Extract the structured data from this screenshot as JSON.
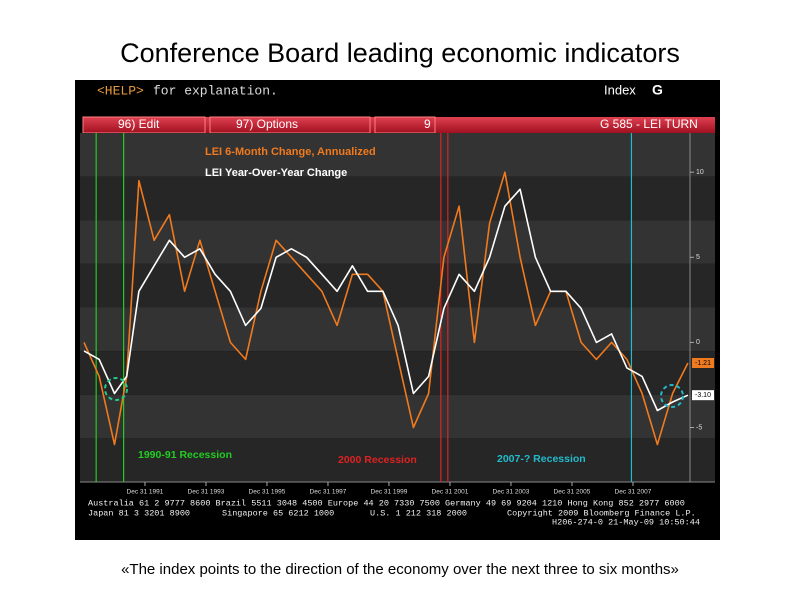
{
  "title": "Conference Board leading economic indicators",
  "caption": "«The index points to the direction of the economy over the next three to six months»",
  "header": {
    "help": "<HELP>",
    "help_text": "for explanation.",
    "index": "Index",
    "key": "G"
  },
  "menu": [
    "96) Edit",
    "97) Options",
    "9",
    "G 585 - LEI TURN"
  ],
  "footer": [
    "Australia 61 2 9777 8600 Brazil 5511 3048 4500 Europe 44 20 7330 7500 Germany 49 69 9204 1210 Hong Kong 852 2977 6000",
    "Japan 81 3 3201 8900",
    "Singapore 65 6212 1000",
    "U.S. 1 212 318 2000",
    "Copyright 2009 Bloomberg Finance L.P.",
    "H206-274-0 21-May-09 10:50:44"
  ],
  "chart_data": {
    "type": "line",
    "x": [
      1990.0,
      1990.5,
      1991.0,
      1991.4,
      1991.8,
      1992.3,
      1992.8,
      1993.3,
      1993.8,
      1994.3,
      1994.8,
      1995.3,
      1995.8,
      1996.3,
      1996.8,
      1997.3,
      1997.8,
      1998.3,
      1998.8,
      1999.3,
      1999.8,
      2000.3,
      2000.8,
      2001.3,
      2001.8,
      2002.3,
      2002.8,
      2003.3,
      2003.8,
      2004.3,
      2004.8,
      2005.3,
      2005.8,
      2006.3,
      2006.8,
      2007.3,
      2007.8,
      2008.3,
      2008.8,
      2009.3,
      2009.8
    ],
    "series": [
      {
        "name": "LEI 6-Month Change, Annualized",
        "color": "#f07a1e",
        "last_label": "-1.21",
        "values": [
          0,
          -2,
          -6,
          -2,
          9.5,
          6,
          7.5,
          3,
          6,
          3,
          0,
          -1,
          3,
          6,
          5,
          4,
          3,
          1,
          4,
          4,
          3,
          -1,
          -5,
          -3,
          5,
          8,
          0,
          7,
          10,
          5,
          1,
          3,
          3,
          0,
          -1,
          0,
          -1,
          -3,
          -6,
          -3,
          -1.21
        ]
      },
      {
        "name": "LEI Year-Over-Year Change",
        "color": "#ffffff",
        "last_label": "-3.10",
        "values": [
          -0.5,
          -1,
          -3,
          -2,
          3,
          4.5,
          6,
          5,
          5.5,
          4,
          3,
          1,
          2,
          5,
          5.5,
          5,
          4,
          3,
          4.5,
          3,
          3,
          1,
          -3,
          -2,
          2,
          4,
          3,
          5,
          8,
          9,
          5,
          3,
          3,
          2,
          0,
          0.5,
          -1.5,
          -2,
          -4,
          -3.5,
          -3.1
        ]
      }
    ],
    "xlim": [
      1989.87,
      2009.87
    ],
    "xticks": [
      {
        "value": 1992.0,
        "label": "Dec 31 1991"
      },
      {
        "value": 1994.0,
        "label": "Dec 31 1993"
      },
      {
        "value": 1996.0,
        "label": "Dec 31 1995"
      },
      {
        "value": 1998.0,
        "label": "Dec 31 1997"
      },
      {
        "value": 2000.0,
        "label": "Dec 31 1999"
      },
      {
        "value": 2002.0,
        "label": "Dec 31 2001"
      },
      {
        "value": 2004.0,
        "label": "Dec 31 2003"
      },
      {
        "value": 2006.0,
        "label": "Dec 31 2005"
      },
      {
        "value": 2008.0,
        "label": "Dec 31 2007"
      }
    ],
    "ylim": [
      -8.2,
      12.3
    ],
    "yticks": [
      10,
      5,
      0,
      -5
    ],
    "recessions": [
      {
        "label": "1990-91 Recession",
        "color": "#22cc22",
        "x": [
          1990.4,
          1991.3
        ]
      },
      {
        "label": "2000 Recession",
        "color": "#dd2222",
        "x": [
          2001.7,
          2001.93
        ]
      },
      {
        "label": "2007-? Recession",
        "color": "#22bbcc",
        "x": [
          2007.95
        ]
      }
    ]
  }
}
